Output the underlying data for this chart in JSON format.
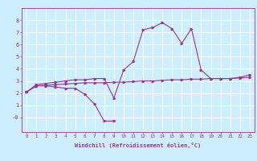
{
  "xlabel": "Windchill (Refroidissement éolien,°C)",
  "bg_color": "#cceeff",
  "line_color": "#993399",
  "grid_color": "#ffffff",
  "x": [
    0,
    1,
    2,
    3,
    4,
    5,
    6,
    7,
    8,
    9,
    10,
    11,
    12,
    13,
    14,
    15,
    16,
    17,
    18,
    19,
    20,
    21,
    22,
    23
  ],
  "line1": [
    2.1,
    2.6,
    2.6,
    2.5,
    2.4,
    2.4,
    1.9,
    1.1,
    -0.3,
    -0.3,
    null,
    null,
    null,
    null,
    null,
    null,
    null,
    null,
    null,
    null,
    null,
    null,
    null,
    null
  ],
  "line2": [
    2.1,
    2.7,
    2.8,
    2.9,
    3.0,
    3.1,
    3.1,
    3.2,
    3.2,
    1.6,
    3.9,
    4.6,
    7.2,
    7.4,
    7.8,
    7.3,
    6.1,
    7.3,
    3.9,
    3.2,
    3.2,
    3.2,
    3.3,
    3.5
  ],
  "line3": [
    2.1,
    2.6,
    2.65,
    2.7,
    2.75,
    2.8,
    2.85,
    2.85,
    2.85,
    2.9,
    2.9,
    2.95,
    3.0,
    3.0,
    3.05,
    3.1,
    3.1,
    3.15,
    3.15,
    3.2,
    3.2,
    3.2,
    3.25,
    3.3
  ],
  "xlim": [
    -0.5,
    23.5
  ],
  "ylim": [
    -1.2,
    9.0
  ],
  "yticks": [
    0,
    1,
    2,
    3,
    4,
    5,
    6,
    7,
    8
  ],
  "ytick_labels": [
    "-0",
    "1",
    "2",
    "3",
    "4",
    "5",
    "6",
    "7",
    "8"
  ],
  "xticks": [
    0,
    1,
    2,
    3,
    4,
    5,
    6,
    7,
    8,
    9,
    10,
    11,
    12,
    13,
    14,
    15,
    16,
    17,
    18,
    19,
    20,
    21,
    22,
    23
  ],
  "xlabel_fontsize": 5.0,
  "tick_fontsize_x": 4.2,
  "tick_fontsize_y": 5.0
}
